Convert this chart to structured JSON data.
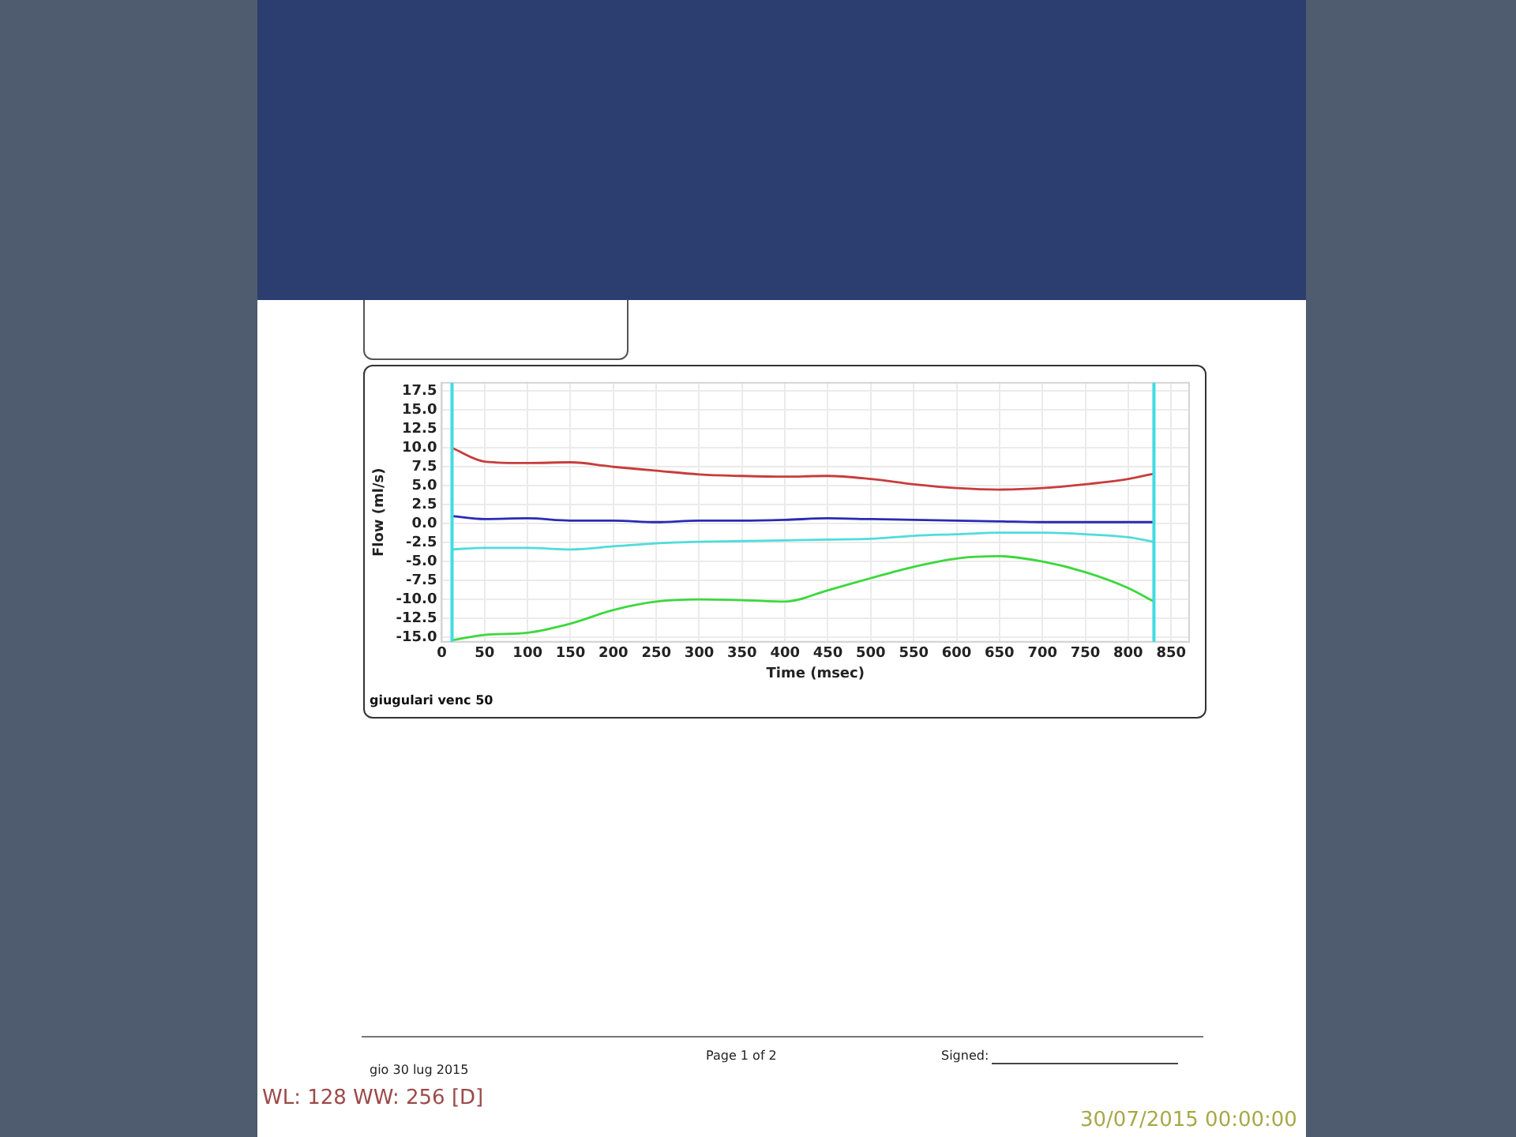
{
  "chart_data": {
    "type": "line",
    "xlabel": "Time (msec)",
    "ylabel": "Flow (ml/s)",
    "x": [
      12,
      50,
      100,
      150,
      200,
      250,
      300,
      350,
      400,
      450,
      500,
      550,
      600,
      650,
      700,
      750,
      800,
      830
    ],
    "series": [
      {
        "color": "#c83c3c",
        "values": [
          10.0,
          8.2,
          8.0,
          8.1,
          7.5,
          7.0,
          6.5,
          6.3,
          6.2,
          6.3,
          5.9,
          5.2,
          4.7,
          4.5,
          4.7,
          5.2,
          5.9,
          6.6
        ]
      },
      {
        "color": "#2a2ab4",
        "values": [
          1.0,
          0.6,
          0.7,
          0.4,
          0.4,
          0.2,
          0.4,
          0.4,
          0.5,
          0.7,
          0.6,
          0.5,
          0.4,
          0.3,
          0.2,
          0.2,
          0.2,
          0.2
        ]
      },
      {
        "color": "#50dcdc",
        "values": [
          -3.4,
          -3.2,
          -3.2,
          -3.4,
          -3.0,
          -2.6,
          -2.4,
          -2.3,
          -2.2,
          -2.1,
          -2.0,
          -1.6,
          -1.4,
          -1.2,
          -1.2,
          -1.4,
          -1.8,
          -2.4
        ]
      },
      {
        "color": "#3cd83c",
        "values": [
          -15.4,
          -14.7,
          -14.4,
          -13.2,
          -11.4,
          -10.3,
          -10.0,
          -10.1,
          -10.3,
          -8.8,
          -7.2,
          -5.7,
          -4.6,
          -4.3,
          -5.0,
          -6.4,
          -8.5,
          -10.3
        ]
      }
    ],
    "xlim": [
      0,
      871
    ],
    "xticks": [
      0,
      50,
      100,
      150,
      200,
      250,
      300,
      350,
      400,
      450,
      500,
      550,
      600,
      650,
      700,
      750,
      800,
      850
    ],
    "ylim": [
      -15.6,
      18.6
    ],
    "yticks": [
      {
        "value": -15,
        "label": "-15.0"
      },
      -12.5,
      {
        "value": -10,
        "label": "-10.0"
      },
      -7.5,
      {
        "value": -5,
        "label": "-5.0"
      },
      -2.5,
      {
        "value": 0,
        "label": "0.0"
      },
      2.5,
      {
        "value": 5,
        "label": "5.0"
      },
      7.5,
      {
        "value": 10,
        "label": "10.0"
      },
      12.5,
      {
        "value": 15,
        "label": "15.0"
      },
      17.5
    ],
    "grid": true,
    "marker": "none",
    "line_style": "solid",
    "ref_lines": [
      {
        "axis": "x",
        "value": 12,
        "color": "#40dce4"
      },
      {
        "axis": "x",
        "value": 830,
        "color": "#40dce4"
      }
    ],
    "annotations": [
      "giugulari venc 50",
      "gio 30 lug 2015",
      "Page 1 of 2",
      "Signed:",
      "WL: 128 WW: 256 [D]",
      "30/07/2015 00:00:00"
    ]
  }
}
